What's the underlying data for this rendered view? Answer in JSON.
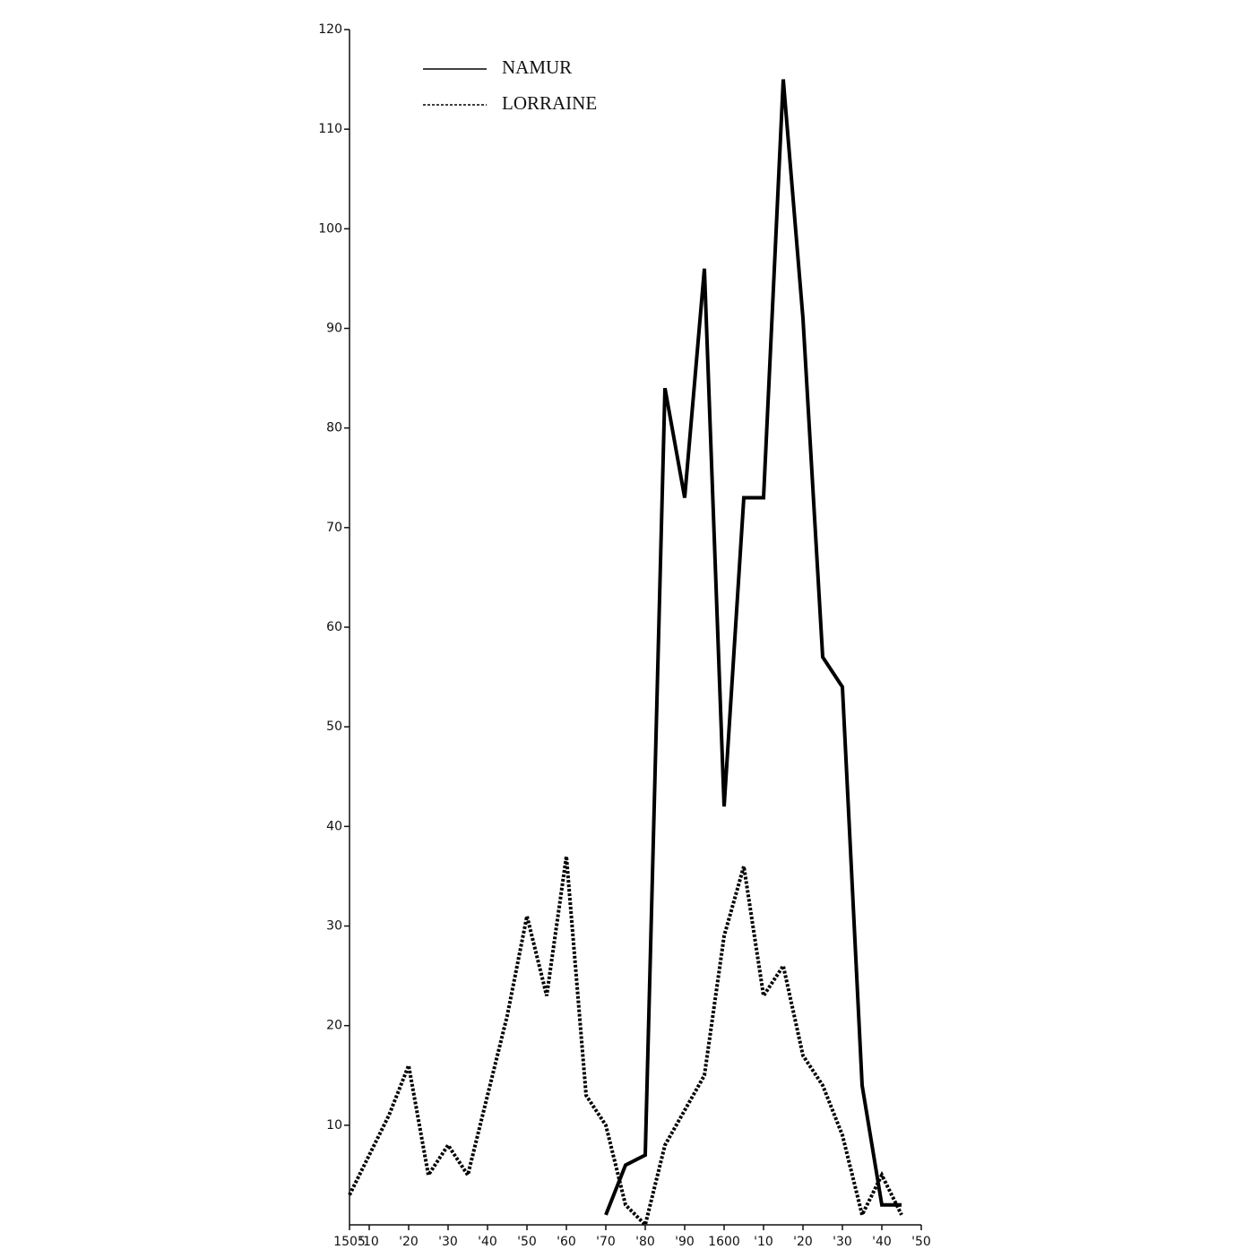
{
  "chart_data": {
    "type": "line",
    "x": [
      1505,
      1510,
      1515,
      1520,
      1525,
      1530,
      1535,
      1540,
      1545,
      1550,
      1555,
      1560,
      1565,
      1570,
      1575,
      1580,
      1585,
      1590,
      1595,
      1600,
      1605,
      1610,
      1615,
      1620,
      1625,
      1630,
      1635,
      1640,
      1645
    ],
    "series": [
      {
        "name": "NAMUR",
        "color": "#000000",
        "style": "solid",
        "values": [
          null,
          null,
          null,
          null,
          null,
          null,
          null,
          null,
          null,
          null,
          null,
          null,
          null,
          1,
          6,
          7,
          84,
          73,
          96,
          42,
          73,
          73,
          115,
          91,
          57,
          54,
          14,
          2,
          2
        ]
      },
      {
        "name": "LORRAINE",
        "color": "#000000",
        "style": "dotted",
        "values": [
          3,
          7,
          11,
          16,
          5,
          8,
          5,
          13,
          21,
          31,
          23,
          37,
          13,
          10,
          2,
          0,
          8,
          11.5,
          15,
          29,
          36,
          23,
          26,
          17,
          14,
          9,
          1,
          5,
          1
        ]
      }
    ],
    "xlim": [
      1505,
      1650
    ],
    "xticks": [
      1505,
      {
        "value": 1510,
        "label": "'10"
      },
      {
        "value": 1520,
        "label": "'20"
      },
      {
        "value": 1530,
        "label": "'30"
      },
      {
        "value": 1540,
        "label": "'40"
      },
      {
        "value": 1550,
        "label": "'50"
      },
      {
        "value": 1560,
        "label": "'60"
      },
      {
        "value": 1570,
        "label": "'70"
      },
      {
        "value": 1580,
        "label": "'80"
      },
      {
        "value": 1590,
        "label": "'90"
      },
      1600,
      {
        "value": 1610,
        "label": "'10"
      },
      {
        "value": 1620,
        "label": "'20"
      },
      {
        "value": 1630,
        "label": "'30"
      },
      {
        "value": 1640,
        "label": "'40"
      },
      {
        "value": 1650,
        "label": "'50"
      }
    ],
    "ylim": [
      0,
      120
    ],
    "yticks": [
      10,
      20,
      30,
      40,
      50,
      60,
      70,
      80,
      90,
      100,
      110,
      120
    ],
    "legend": "top-left"
  }
}
